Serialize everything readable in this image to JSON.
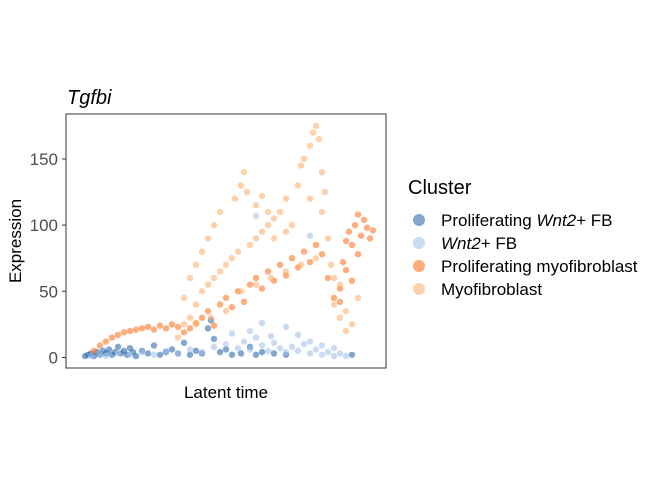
{
  "chart_data": {
    "type": "scatter",
    "title": "Tgfbi",
    "xlabel": "Latent time",
    "ylabel": "Expression",
    "ylim": [
      -8,
      184
    ],
    "xlim": [
      0,
      1
    ],
    "y_ticks": [
      0,
      50,
      100,
      150
    ],
    "x_ticks": [],
    "grid": false,
    "legend_position": "right",
    "legend": {
      "title": "Cluster",
      "entries": [
        {
          "name": "Proliferating Wnt2+ FB",
          "parts": [
            {
              "t": "Proliferating ",
              "it": false
            },
            {
              "t": "Wnt2",
              "it": true
            },
            {
              "t": "+ FB",
              "it": false
            }
          ],
          "color": "#1a5fa8"
        },
        {
          "name": "Wnt2+ FB",
          "parts": [
            {
              "t": "Wnt2",
              "it": true
            },
            {
              "t": "+ FB",
              "it": false
            }
          ],
          "color": "#9fbde8"
        },
        {
          "name": "Proliferating myofibroblast",
          "parts": [
            {
              "t": "Proliferating myofibroblast",
              "it": false
            }
          ],
          "color": "#ff6a10"
        },
        {
          "name": "Myofibroblast",
          "parts": [
            {
              "t": "Myofibroblast",
              "it": false
            }
          ],
          "color": "#ffac66"
        }
      ]
    },
    "series": [
      {
        "name": "Proliferating Wnt2+ FB",
        "color": "#1a5fa8",
        "points": [
          [
            0.03,
            1
          ],
          [
            0.04,
            2
          ],
          [
            0.05,
            3
          ],
          [
            0.06,
            1
          ],
          [
            0.07,
            4
          ],
          [
            0.08,
            2
          ],
          [
            0.09,
            5
          ],
          [
            0.1,
            3
          ],
          [
            0.11,
            6
          ],
          [
            0.12,
            2
          ],
          [
            0.13,
            4
          ],
          [
            0.14,
            8
          ],
          [
            0.15,
            3
          ],
          [
            0.16,
            5
          ],
          [
            0.17,
            2
          ],
          [
            0.18,
            7
          ],
          [
            0.19,
            4
          ],
          [
            0.2,
            1
          ],
          [
            0.22,
            5
          ],
          [
            0.24,
            3
          ],
          [
            0.26,
            9
          ],
          [
            0.28,
            2
          ],
          [
            0.3,
            4
          ],
          [
            0.32,
            6
          ],
          [
            0.34,
            3
          ],
          [
            0.36,
            11
          ],
          [
            0.38,
            2
          ],
          [
            0.4,
            5
          ],
          [
            0.42,
            3
          ],
          [
            0.44,
            22
          ],
          [
            0.45,
            28
          ],
          [
            0.46,
            14
          ],
          [
            0.48,
            4
          ],
          [
            0.5,
            6
          ],
          [
            0.52,
            2
          ],
          [
            0.55,
            3
          ],
          [
            0.58,
            8
          ],
          [
            0.6,
            2
          ],
          [
            0.62,
            4
          ],
          [
            0.66,
            3
          ],
          [
            0.7,
            2
          ],
          [
            0.92,
            2
          ]
        ]
      },
      {
        "name": "Wnt2+ FB",
        "color": "#9fbde8",
        "points": [
          [
            0.05,
            1
          ],
          [
            0.08,
            2
          ],
          [
            0.1,
            1
          ],
          [
            0.14,
            3
          ],
          [
            0.18,
            2
          ],
          [
            0.22,
            4
          ],
          [
            0.26,
            2
          ],
          [
            0.3,
            5
          ],
          [
            0.34,
            3
          ],
          [
            0.38,
            6
          ],
          [
            0.42,
            4
          ],
          [
            0.46,
            8
          ],
          [
            0.5,
            10
          ],
          [
            0.52,
            18
          ],
          [
            0.54,
            7
          ],
          [
            0.56,
            12
          ],
          [
            0.58,
            6
          ],
          [
            0.6,
            15
          ],
          [
            0.62,
            9
          ],
          [
            0.64,
            5
          ],
          [
            0.66,
            11
          ],
          [
            0.68,
            7
          ],
          [
            0.7,
            4
          ],
          [
            0.72,
            8
          ],
          [
            0.74,
            5
          ],
          [
            0.76,
            10
          ],
          [
            0.78,
            3
          ],
          [
            0.8,
            6
          ],
          [
            0.82,
            2
          ],
          [
            0.84,
            4
          ],
          [
            0.86,
            1
          ],
          [
            0.88,
            3
          ],
          [
            0.9,
            1
          ],
          [
            0.58,
            20
          ],
          [
            0.62,
            26
          ],
          [
            0.65,
            16
          ],
          [
            0.7,
            23
          ],
          [
            0.74,
            17
          ],
          [
            0.78,
            12
          ],
          [
            0.82,
            9
          ],
          [
            0.86,
            7
          ],
          [
            0.6,
            107
          ],
          [
            0.78,
            92
          ]
        ]
      },
      {
        "name": "Proliferating myofibroblast",
        "color": "#ff6a10",
        "points": [
          [
            0.06,
            5
          ],
          [
            0.08,
            9
          ],
          [
            0.1,
            12
          ],
          [
            0.12,
            15
          ],
          [
            0.14,
            17
          ],
          [
            0.16,
            19
          ],
          [
            0.18,
            20
          ],
          [
            0.2,
            21
          ],
          [
            0.22,
            22
          ],
          [
            0.24,
            23
          ],
          [
            0.26,
            21
          ],
          [
            0.28,
            24
          ],
          [
            0.3,
            22
          ],
          [
            0.32,
            25
          ],
          [
            0.34,
            23
          ],
          [
            0.36,
            19
          ],
          [
            0.38,
            22
          ],
          [
            0.4,
            26
          ],
          [
            0.42,
            30
          ],
          [
            0.44,
            35
          ],
          [
            0.46,
            24
          ],
          [
            0.48,
            40
          ],
          [
            0.5,
            45
          ],
          [
            0.52,
            38
          ],
          [
            0.54,
            50
          ],
          [
            0.56,
            42
          ],
          [
            0.58,
            55
          ],
          [
            0.6,
            60
          ],
          [
            0.62,
            52
          ],
          [
            0.64,
            65
          ],
          [
            0.66,
            58
          ],
          [
            0.68,
            70
          ],
          [
            0.7,
            62
          ],
          [
            0.72,
            75
          ],
          [
            0.74,
            68
          ],
          [
            0.76,
            80
          ],
          [
            0.78,
            72
          ],
          [
            0.8,
            85
          ],
          [
            0.82,
            78
          ],
          [
            0.84,
            60
          ],
          [
            0.86,
            45
          ],
          [
            0.88,
            52
          ],
          [
            0.89,
            72
          ],
          [
            0.9,
            88
          ],
          [
            0.91,
            95
          ],
          [
            0.92,
            85
          ],
          [
            0.93,
            100
          ],
          [
            0.94,
            108
          ],
          [
            0.95,
            92
          ],
          [
            0.96,
            104
          ],
          [
            0.97,
            98
          ],
          [
            0.98,
            90
          ],
          [
            0.99,
            96
          ],
          [
            0.9,
            66
          ],
          [
            0.92,
            58
          ],
          [
            0.94,
            78
          ],
          [
            0.88,
            42
          ]
        ]
      },
      {
        "name": "Myofibroblast",
        "color": "#ffac66",
        "points": [
          [
            0.34,
            15
          ],
          [
            0.36,
            25
          ],
          [
            0.36,
            45
          ],
          [
            0.38,
            30
          ],
          [
            0.38,
            60
          ],
          [
            0.4,
            40
          ],
          [
            0.4,
            70
          ],
          [
            0.42,
            50
          ],
          [
            0.42,
            80
          ],
          [
            0.44,
            55
          ],
          [
            0.44,
            90
          ],
          [
            0.46,
            60
          ],
          [
            0.46,
            100
          ],
          [
            0.48,
            65
          ],
          [
            0.48,
            110
          ],
          [
            0.5,
            70
          ],
          [
            0.52,
            75
          ],
          [
            0.53,
            120
          ],
          [
            0.54,
            80
          ],
          [
            0.55,
            130
          ],
          [
            0.56,
            140
          ],
          [
            0.57,
            125
          ],
          [
            0.58,
            85
          ],
          [
            0.6,
            90
          ],
          [
            0.6,
            115
          ],
          [
            0.62,
            95
          ],
          [
            0.62,
            122
          ],
          [
            0.64,
            100
          ],
          [
            0.64,
            110
          ],
          [
            0.66,
            105
          ],
          [
            0.66,
            90
          ],
          [
            0.68,
            110
          ],
          [
            0.7,
            120
          ],
          [
            0.7,
            95
          ],
          [
            0.72,
            100
          ],
          [
            0.74,
            130
          ],
          [
            0.75,
            145
          ],
          [
            0.76,
            150
          ],
          [
            0.78,
            120
          ],
          [
            0.78,
            160
          ],
          [
            0.79,
            170
          ],
          [
            0.8,
            175
          ],
          [
            0.81,
            165
          ],
          [
            0.82,
            140
          ],
          [
            0.82,
            110
          ],
          [
            0.83,
            125
          ],
          [
            0.84,
            90
          ],
          [
            0.85,
            70
          ],
          [
            0.86,
            60
          ],
          [
            0.86,
            40
          ],
          [
            0.88,
            55
          ],
          [
            0.88,
            30
          ],
          [
            0.9,
            35
          ],
          [
            0.9,
            20
          ],
          [
            0.92,
            25
          ],
          [
            0.94,
            45
          ],
          [
            0.55,
            50
          ],
          [
            0.6,
            55
          ],
          [
            0.65,
            60
          ],
          [
            0.7,
            65
          ],
          [
            0.75,
            70
          ],
          [
            0.8,
            75
          ],
          [
            0.5,
            35
          ],
          [
            0.45,
            30
          ],
          [
            0.4,
            25
          ]
        ]
      }
    ]
  }
}
